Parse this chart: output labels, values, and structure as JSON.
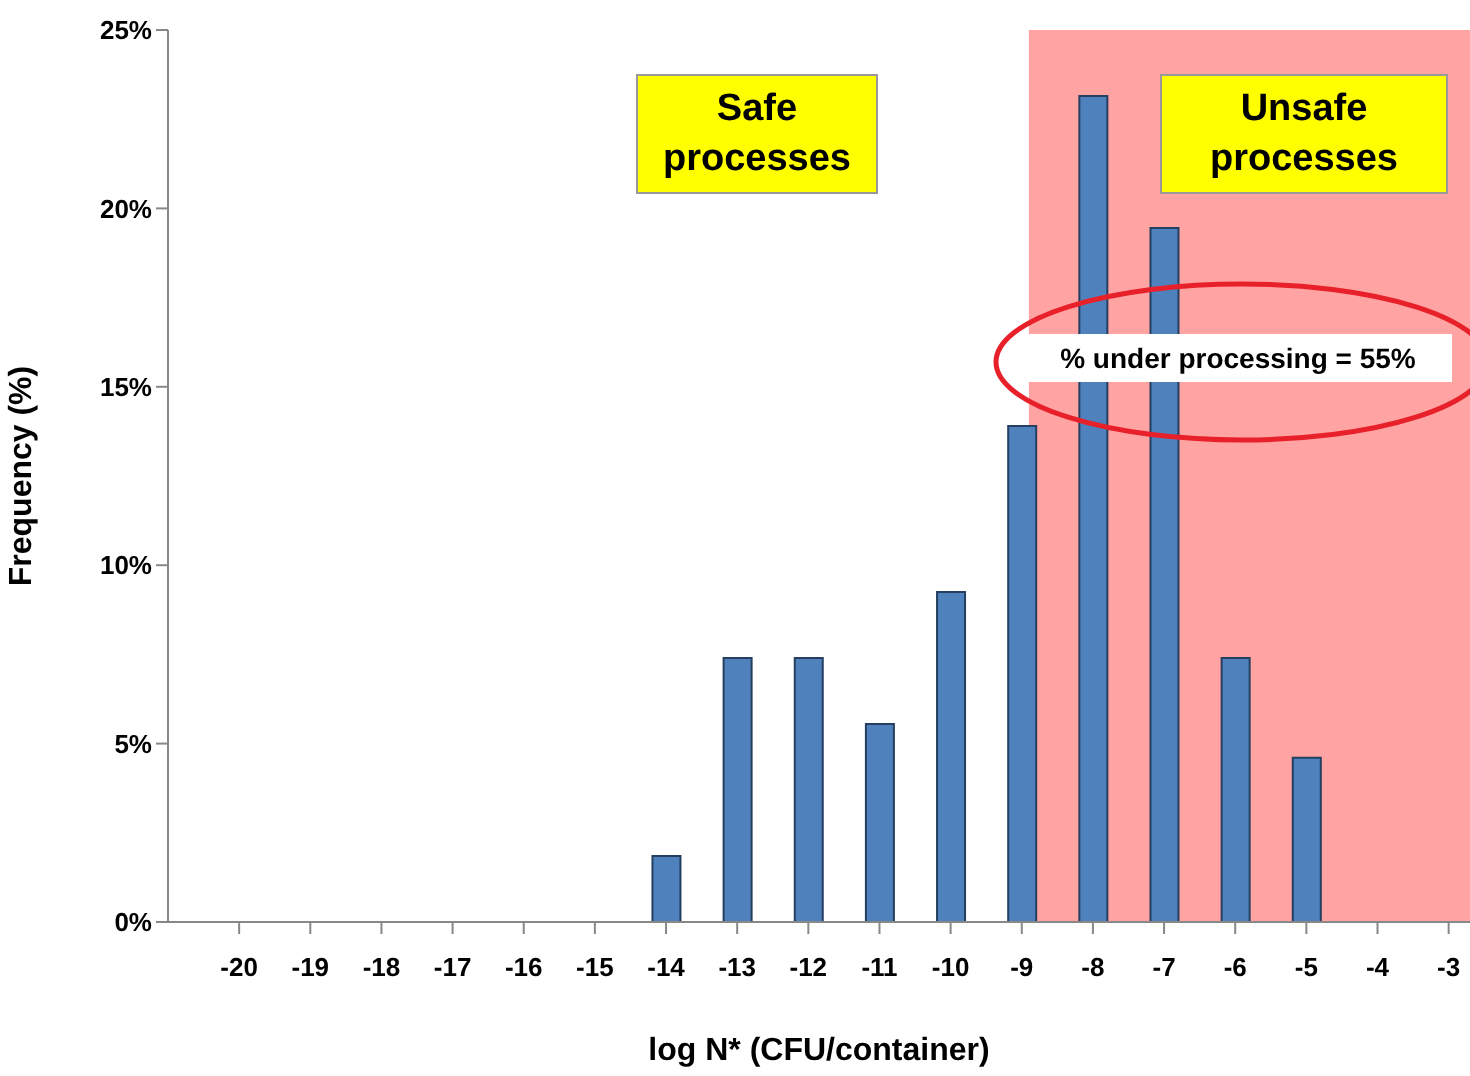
{
  "chart_data": {
    "type": "bar",
    "xlabel": "log N* (CFU/container)",
    "ylabel": "Frequency (%)",
    "x": [
      -14,
      -13,
      -12,
      -11,
      -10,
      -9,
      -8,
      -7,
      -6,
      -5
    ],
    "values": [
      1.85,
      7.4,
      7.4,
      5.55,
      9.25,
      13.9,
      23.15,
      19.45,
      7.4,
      4.6
    ],
    "color": "#4f81bd",
    "xlim": [
      -21,
      -2.7
    ],
    "xticks": [
      -20,
      -19,
      -18,
      -17,
      -16,
      -15,
      -14,
      -13,
      -12,
      -11,
      -10,
      -9,
      -8,
      -7,
      -6,
      -5,
      -4,
      -3
    ],
    "ylim": [
      0,
      25
    ],
    "yticks": [
      {
        "value": 0,
        "label": "0%"
      },
      {
        "value": 5,
        "label": "5%"
      },
      {
        "value": 10,
        "label": "10%"
      },
      {
        "value": 15,
        "label": "15%"
      },
      {
        "value": 20,
        "label": "20%"
      },
      {
        "value": 25,
        "label": "25%"
      }
    ],
    "bands": [
      {
        "axis": "x",
        "from": -8.9,
        "to": -2.7,
        "color": "#ffa3a3"
      }
    ],
    "annotations": [
      "Safe processes",
      "Unsafe processes",
      "% under processing = 55%"
    ],
    "grid": false,
    "legend": false
  }
}
